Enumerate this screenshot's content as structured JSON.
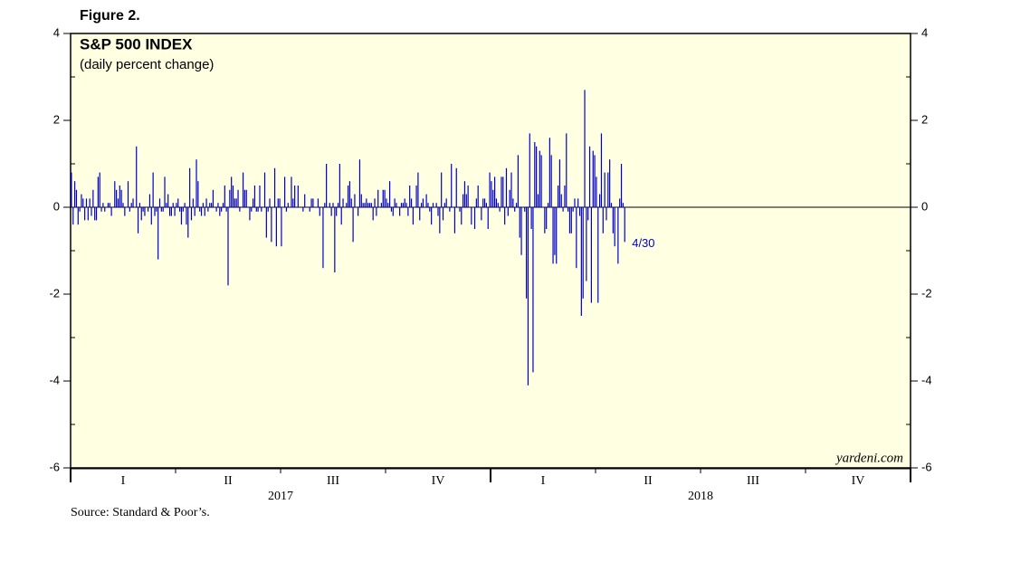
{
  "chart_data": {
    "type": "bar",
    "figure_label": "Figure 2.",
    "title": "S&P 500 INDEX",
    "subtitle": "(daily percent change)",
    "source": "Source: Standard & Poor’s.",
    "credit": "yardeni.com",
    "annotation": "4/30",
    "color": "#0000cc",
    "ylim": [
      -6,
      4
    ],
    "yticks": [
      -6,
      -4,
      -2,
      0,
      2,
      4
    ],
    "yminorticks": [
      -5,
      -3,
      -1,
      1,
      3
    ],
    "quarters": [
      "I",
      "II",
      "III",
      "IV",
      "I",
      "II",
      "III",
      "IV"
    ],
    "years": [
      "2017",
      "2018"
    ],
    "values": [
      0.8,
      -0.4,
      0.6,
      0.4,
      -0.4,
      -0.1,
      0.3,
      0.2,
      -0.3,
      0.2,
      -0.3,
      0.2,
      -0.2,
      0.4,
      -0.3,
      -0.3,
      0.7,
      0.8,
      -0.1,
      0.1,
      -0.1,
      0.0,
      0.1,
      0.1,
      -0.2,
      0.0,
      0.6,
      0.4,
      0.2,
      0.5,
      0.4,
      0.1,
      -0.2,
      0.0,
      0.6,
      -0.1,
      0.1,
      0.2,
      0.0,
      1.4,
      -0.6,
      0.1,
      -0.3,
      -0.1,
      -0.2,
      0.0,
      -0.1,
      0.3,
      -0.4,
      0.8,
      -0.2,
      -0.1,
      -1.2,
      0.2,
      -0.1,
      -0.1,
      0.7,
      0.1,
      0.3,
      -0.2,
      -0.2,
      0.1,
      -0.2,
      0.1,
      0.2,
      -0.1,
      -0.4,
      -0.1,
      0.1,
      -0.4,
      -0.7,
      0.9,
      -0.3,
      0.2,
      -0.2,
      1.1,
      0.6,
      -0.1,
      -0.2,
      0.1,
      -0.2,
      0.2,
      -0.1,
      0.1,
      0.1,
      0.4,
      0.0,
      -0.1,
      0.1,
      -0.2,
      -0.1,
      0.1,
      0.5,
      -0.1,
      -1.8,
      0.4,
      0.7,
      0.5,
      0.2,
      0.2,
      0.4,
      -0.1,
      0.0,
      0.8,
      0.4,
      0.4,
      0.0,
      -0.3,
      -0.1,
      0.2,
      0.5,
      -0.1,
      -0.1,
      0.5,
      -0.1,
      0.0,
      0.8,
      -0.7,
      -0.1,
      0.2,
      -0.8,
      0.0,
      0.9,
      -0.9,
      0.2,
      0.2,
      -0.9,
      0.0,
      0.7,
      -0.1,
      0.1,
      0.0,
      0.7,
      0.2,
      0.5,
      0.0,
      0.5,
      0.0,
      0.0,
      -0.1,
      0.3,
      0.0,
      0.0,
      -0.1,
      0.2,
      0.2,
      0.0,
      0.0,
      0.2,
      -0.2,
      0.0,
      -1.4,
      0.1,
      1.0,
      0.0,
      0.1,
      -0.2,
      0.1,
      -1.5,
      -0.2,
      0.1,
      1.0,
      -0.4,
      0.2,
      0.0,
      0.1,
      0.5,
      0.6,
      0.2,
      -0.8,
      0.3,
      0.0,
      -0.2,
      1.1,
      0.3,
      0.1,
      0.1,
      0.2,
      0.1,
      0.1,
      0.1,
      -0.3,
      0.2,
      -0.2,
      0.4,
      0.0,
      0.1,
      0.4,
      0.4,
      0.2,
      0.1,
      0.6,
      -0.1,
      -0.2,
      0.2,
      0.1,
      0.0,
      -0.2,
      0.1,
      0.1,
      0.2,
      0.1,
      -0.2,
      0.5,
      0.2,
      -0.4,
      0.0,
      0.5,
      0.8,
      -0.3,
      0.1,
      0.2,
      0.0,
      0.3,
      0.1,
      -0.1,
      -0.4,
      0.1,
      0.0,
      0.1,
      -0.2,
      -0.6,
      0.8,
      -0.3,
      0.1,
      0.2,
      0.0,
      -0.1,
      1.0,
      0.0,
      -0.6,
      0.9,
      0.0,
      -0.1,
      -0.4,
      0.3,
      0.6,
      0.3,
      0.5,
      0.0,
      -0.4,
      0.0,
      -0.5,
      0.2,
      0.5,
      0.0,
      -0.3,
      0.2,
      0.2,
      0.1,
      -0.5,
      0.8,
      0.6,
      0.4,
      0.7,
      0.2,
      0.1,
      -0.1,
      0.7,
      0.7,
      -0.4,
      0.9,
      -0.2,
      0.4,
      0.8,
      0.2,
      -0.1,
      0.1,
      1.2,
      -0.7,
      -1.1,
      0.0,
      -0.1,
      -2.1,
      -4.1,
      1.7,
      -0.5,
      -3.8,
      1.5,
      1.4,
      0.3,
      1.3,
      1.2,
      0.0,
      -0.6,
      -0.5,
      0.1,
      1.6,
      1.2,
      -1.3,
      -1.1,
      -1.3,
      0.5,
      1.1,
      0.3,
      -0.1,
      0.5,
      1.7,
      -0.1,
      -0.6,
      -0.6,
      -0.1,
      0.2,
      -1.4,
      0.2,
      -0.2,
      -2.5,
      -2.1,
      2.7,
      -1.7,
      -0.3,
      1.4,
      -2.2,
      1.3,
      1.2,
      0.7,
      -2.2,
      0.3,
      1.7,
      -0.6,
      0.8,
      -0.3,
      0.8,
      1.1,
      0.1,
      -0.6,
      -0.9,
      0.0,
      -1.3,
      0.2,
      1.0,
      0.1,
      -0.8
    ]
  }
}
